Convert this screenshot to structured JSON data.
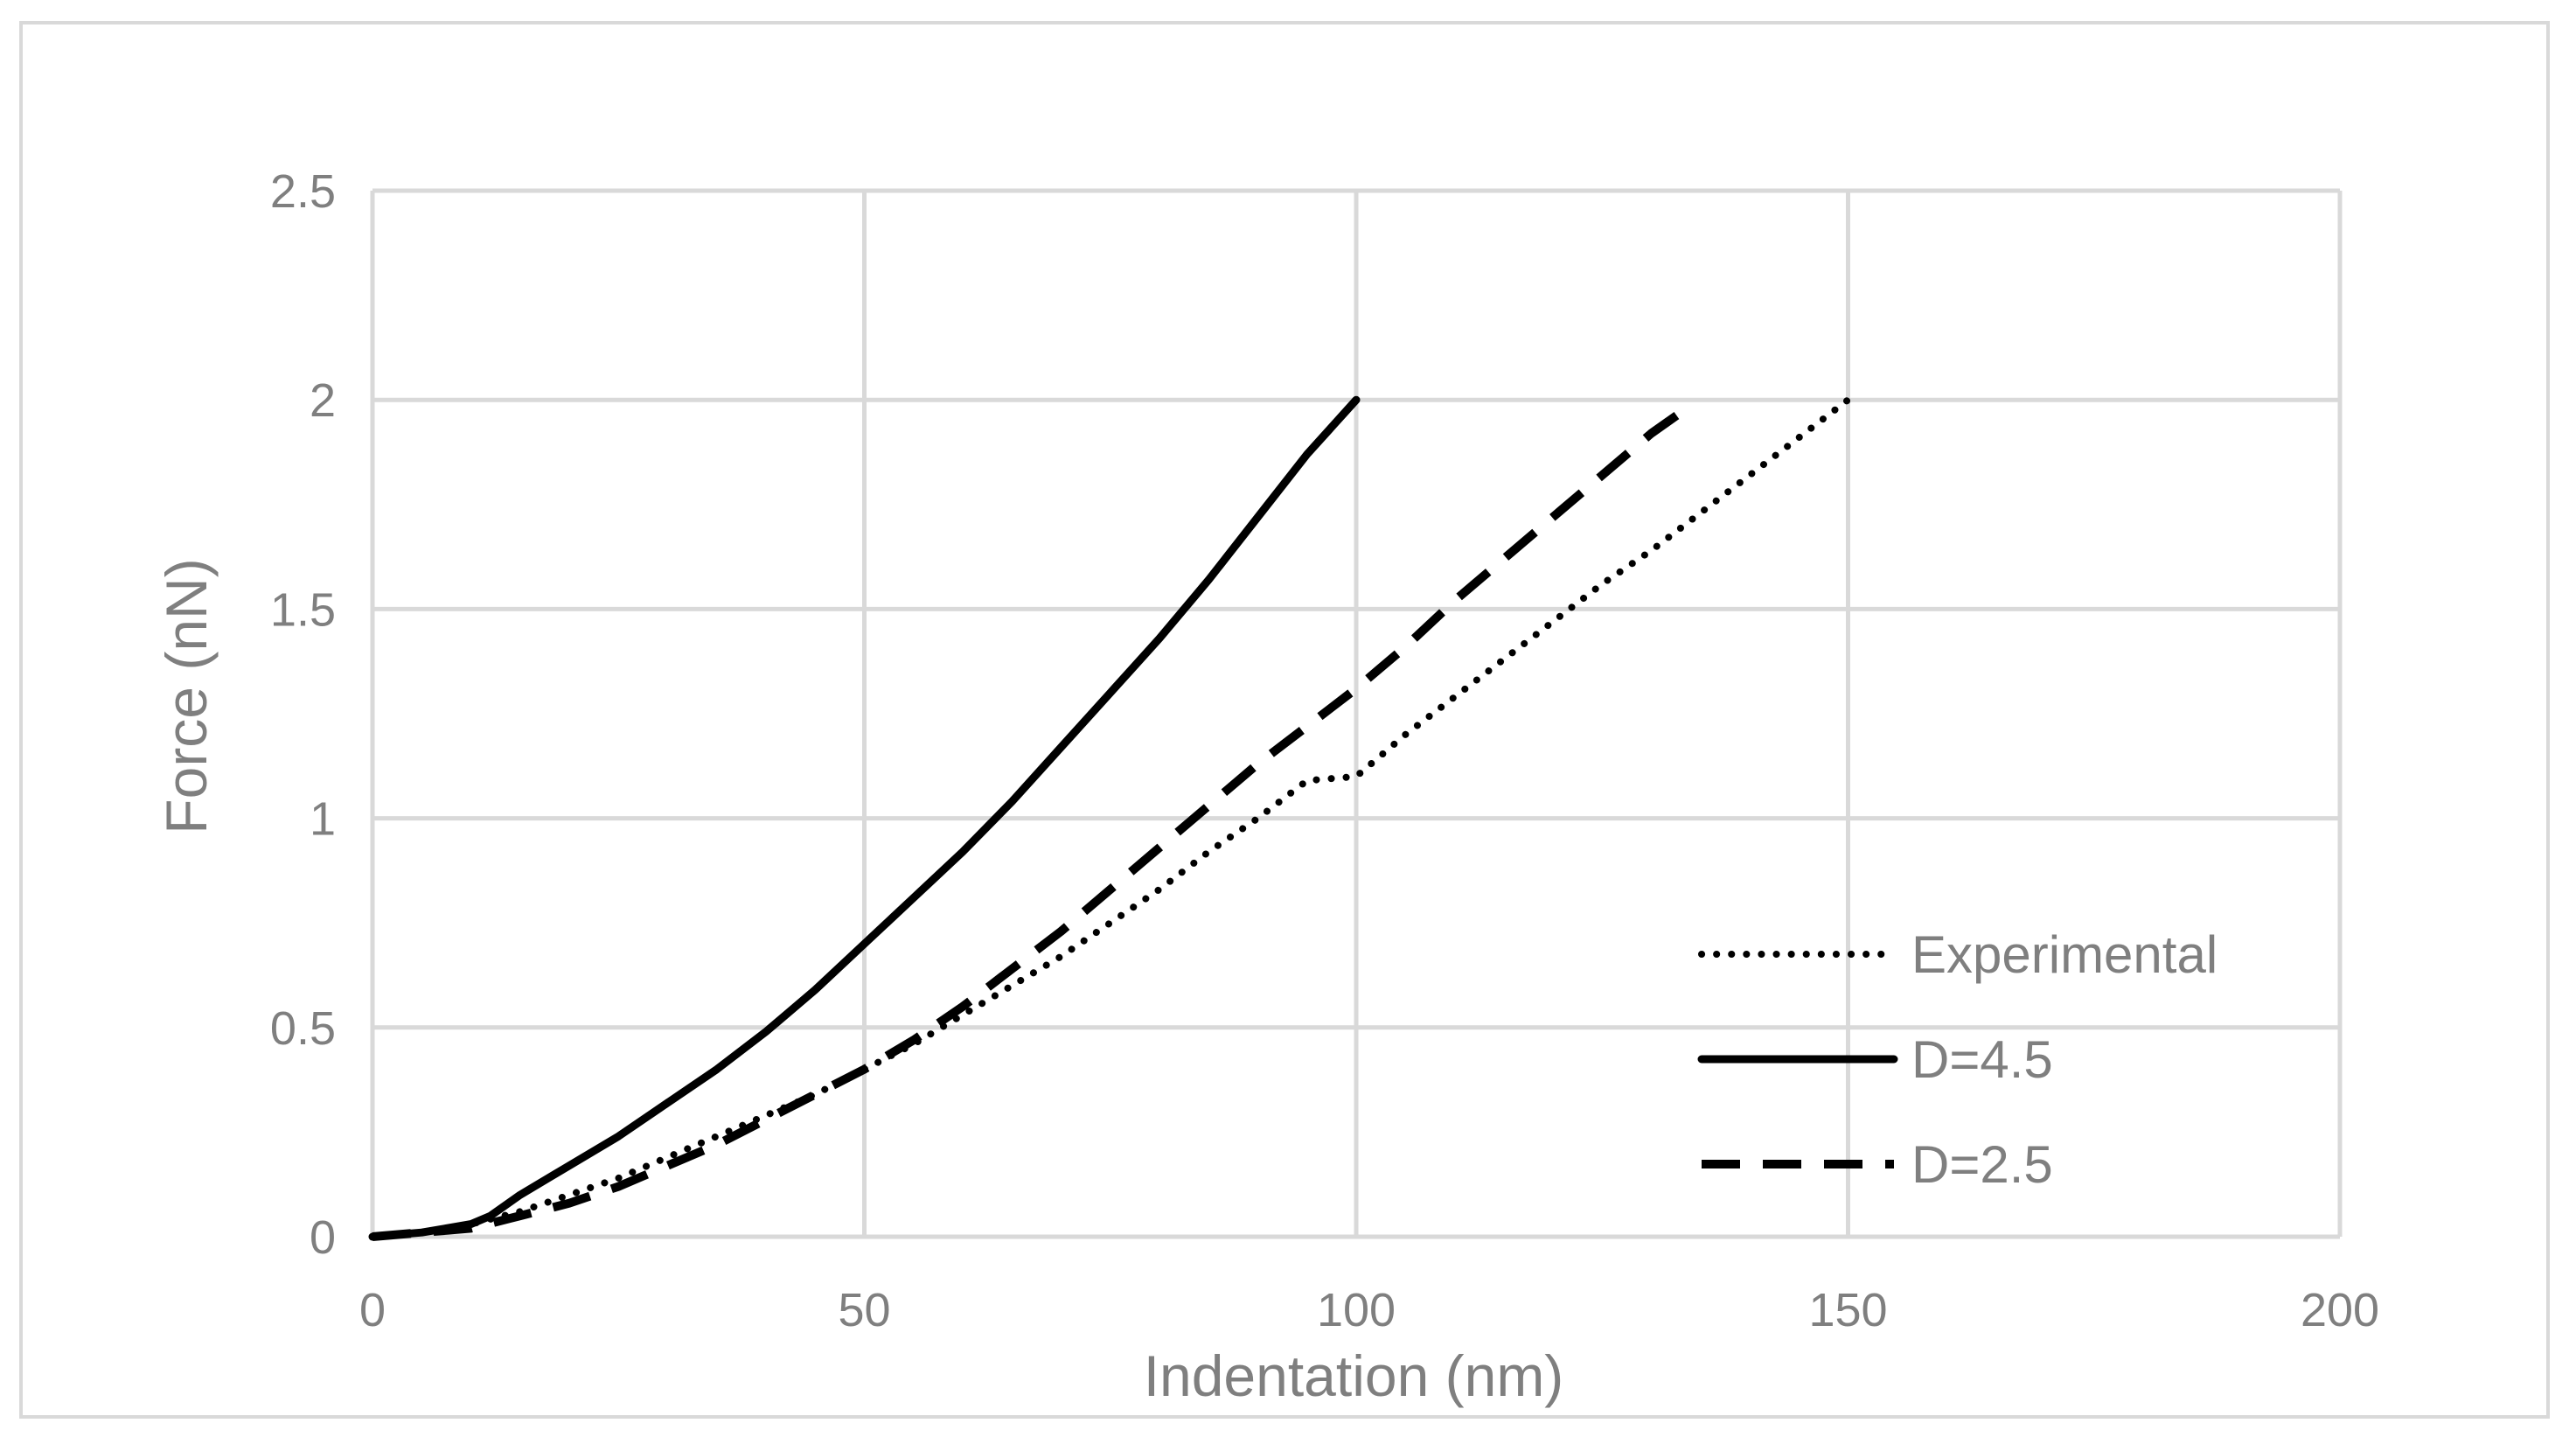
{
  "chart_data": {
    "type": "line",
    "title": "",
    "xlabel": "Indentation (nm)",
    "ylabel": "Force (nN)",
    "xlim": [
      0,
      200
    ],
    "ylim": [
      0,
      2.5
    ],
    "x_ticks": [
      0,
      50,
      100,
      150,
      200
    ],
    "y_ticks": [
      0,
      0.5,
      1,
      1.5,
      2,
      2.5
    ],
    "x_tick_labels": [
      "0",
      "50",
      "100",
      "150",
      "200"
    ],
    "y_tick_labels": [
      "0",
      "0.5",
      "1",
      "1.5",
      "2",
      "2.5"
    ],
    "grid": true,
    "legend_position": "bottom-right",
    "series": [
      {
        "name": "Experimental",
        "style": "dotted",
        "color": "#000000",
        "x": [
          0,
          5,
          10,
          15,
          20,
          25,
          30,
          35,
          40,
          45,
          50,
          55,
          60,
          65,
          70,
          75,
          80,
          85,
          90,
          95,
          100,
          105,
          110,
          115,
          120,
          125,
          130,
          135,
          140,
          145,
          150
        ],
        "y": [
          0,
          0.01,
          0.03,
          0.06,
          0.1,
          0.14,
          0.19,
          0.24,
          0.29,
          0.34,
          0.4,
          0.46,
          0.53,
          0.6,
          0.67,
          0.75,
          0.83,
          0.92,
          1.0,
          1.09,
          1.1,
          1.2,
          1.29,
          1.38,
          1.47,
          1.56,
          1.64,
          1.73,
          1.82,
          1.91,
          2.0
        ]
      },
      {
        "name": "D=4.5",
        "style": "solid",
        "color": "#000000",
        "x": [
          0,
          5,
          10,
          12,
          15,
          20,
          25,
          30,
          35,
          40,
          45,
          50,
          55,
          60,
          65,
          70,
          75,
          80,
          85,
          90,
          95,
          100
        ],
        "y": [
          0,
          0.01,
          0.03,
          0.05,
          0.1,
          0.17,
          0.24,
          0.32,
          0.4,
          0.49,
          0.59,
          0.7,
          0.81,
          0.92,
          1.04,
          1.17,
          1.3,
          1.43,
          1.57,
          1.72,
          1.87,
          2.0
        ]
      },
      {
        "name": "D=2.5",
        "style": "dashed",
        "color": "#000000",
        "x": [
          0,
          5,
          10,
          15,
          20,
          25,
          30,
          35,
          40,
          45,
          50,
          55,
          60,
          65,
          70,
          75,
          80,
          85,
          90,
          95,
          100,
          105,
          110,
          115,
          120,
          125,
          130,
          133
        ],
        "y": [
          0,
          0.01,
          0.02,
          0.05,
          0.08,
          0.12,
          0.17,
          0.22,
          0.28,
          0.34,
          0.4,
          0.47,
          0.55,
          0.64,
          0.73,
          0.83,
          0.93,
          1.03,
          1.13,
          1.22,
          1.31,
          1.41,
          1.52,
          1.62,
          1.72,
          1.82,
          1.92,
          1.97
        ]
      }
    ]
  }
}
